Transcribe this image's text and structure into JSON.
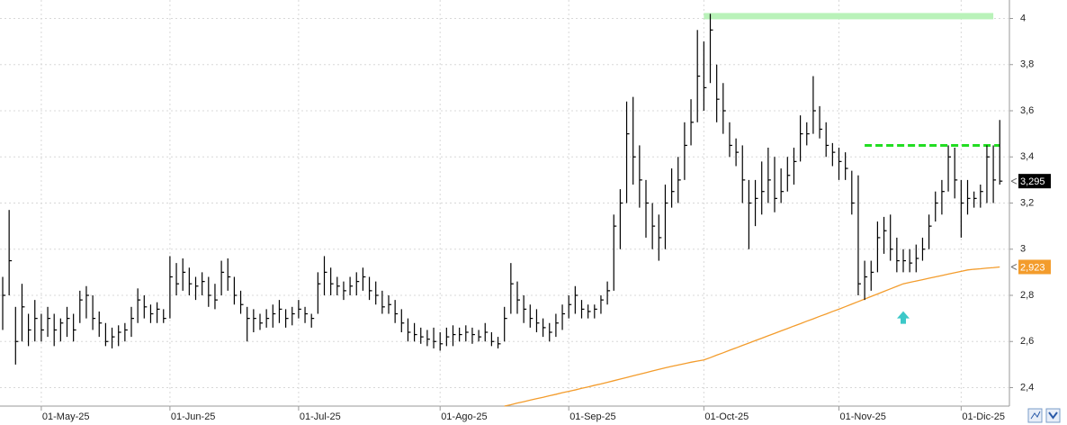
{
  "chart_data": {
    "type": "ohlc",
    "bar_color": "#000000",
    "categories": [
      null,
      null,
      null,
      null,
      null,
      null,
      "01-May-25",
      null,
      null,
      null,
      null,
      null,
      null,
      null,
      null,
      null,
      null,
      null,
      null,
      null,
      null,
      null,
      null,
      null,
      null,
      null,
      "01-Jun-25",
      null,
      null,
      null,
      null,
      null,
      null,
      null,
      null,
      null,
      null,
      null,
      null,
      null,
      null,
      null,
      null,
      null,
      null,
      null,
      "01-Jul-25",
      null,
      null,
      null,
      null,
      null,
      null,
      null,
      null,
      null,
      null,
      null,
      null,
      null,
      null,
      null,
      null,
      null,
      null,
      null,
      null,
      null,
      "01-Ago-25",
      null,
      null,
      null,
      null,
      null,
      null,
      null,
      null,
      null,
      null,
      null,
      null,
      null,
      null,
      null,
      null,
      null,
      null,
      null,
      "01-Sep-25",
      null,
      null,
      null,
      null,
      null,
      null,
      null,
      null,
      null,
      null,
      null,
      null,
      null,
      null,
      null,
      null,
      null,
      null,
      null,
      null,
      "01-Oct-25",
      null,
      null,
      null,
      null,
      null,
      null,
      null,
      null,
      null,
      null,
      null,
      null,
      null,
      null,
      null,
      null,
      null,
      null,
      null,
      null,
      "01-Nov-25",
      null,
      null,
      null,
      null,
      null,
      null,
      null,
      null,
      null,
      null,
      null,
      null,
      null,
      null,
      null,
      null,
      null,
      null,
      "01-Dic-25",
      null,
      null,
      null,
      null,
      null,
      null
    ],
    "high": [
      2.88,
      3.17,
      2.75,
      2.85,
      2.72,
      2.78,
      2.72,
      2.75,
      2.72,
      2.7,
      2.75,
      2.72,
      2.82,
      2.84,
      2.8,
      2.73,
      2.68,
      2.66,
      2.67,
      2.68,
      2.75,
      2.83,
      2.8,
      2.76,
      2.77,
      2.74,
      2.97,
      2.94,
      2.96,
      2.92,
      2.88,
      2.9,
      2.88,
      2.85,
      2.95,
      2.96,
      2.88,
      2.82,
      2.75,
      2.74,
      2.72,
      2.74,
      2.76,
      2.78,
      2.74,
      2.75,
      2.78,
      2.75,
      2.72,
      2.9,
      2.97,
      2.92,
      2.88,
      2.86,
      2.88,
      2.9,
      2.92,
      2.88,
      2.86,
      2.82,
      2.8,
      2.78,
      2.74,
      2.7,
      2.68,
      2.66,
      2.65,
      2.66,
      2.64,
      2.66,
      2.67,
      2.66,
      2.67,
      2.66,
      2.65,
      2.68,
      2.64,
      2.62,
      2.75,
      2.94,
      2.86,
      2.8,
      2.76,
      2.74,
      2.7,
      2.68,
      2.72,
      2.76,
      2.8,
      2.84,
      2.78,
      2.76,
      2.76,
      2.8,
      2.86,
      3.15,
      3.26,
      3.64,
      3.66,
      3.45,
      3.3,
      3.2,
      3.15,
      3.28,
      3.35,
      3.4,
      3.55,
      3.65,
      3.95,
      3.9,
      4.02,
      3.8,
      3.72,
      3.55,
      3.48,
      3.45,
      3.3,
      3.3,
      3.38,
      3.44,
      3.4,
      3.35,
      3.4,
      3.44,
      3.58,
      3.55,
      3.75,
      3.62,
      3.55,
      3.46,
      3.44,
      3.42,
      3.34,
      3.32,
      2.95,
      2.95,
      3.12,
      3.14,
      3.15,
      3.05,
      3.0,
      3.0,
      3.02,
      3.05,
      3.15,
      3.25,
      3.3,
      3.45,
      3.44,
      3.3,
      3.3,
      3.25,
      3.28,
      3.45,
      3.45,
      3.56
    ],
    "low": [
      2.65,
      2.8,
      2.5,
      2.6,
      2.58,
      2.6,
      2.6,
      2.62,
      2.58,
      2.6,
      2.62,
      2.6,
      2.68,
      2.7,
      2.65,
      2.62,
      2.58,
      2.57,
      2.58,
      2.6,
      2.62,
      2.68,
      2.7,
      2.68,
      2.68,
      2.68,
      2.7,
      2.8,
      2.82,
      2.8,
      2.78,
      2.8,
      2.75,
      2.74,
      2.8,
      2.82,
      2.76,
      2.72,
      2.6,
      2.64,
      2.65,
      2.66,
      2.66,
      2.68,
      2.66,
      2.67,
      2.7,
      2.68,
      2.66,
      2.72,
      2.8,
      2.8,
      2.8,
      2.78,
      2.8,
      2.8,
      2.82,
      2.78,
      2.76,
      2.72,
      2.72,
      2.68,
      2.64,
      2.6,
      2.6,
      2.59,
      2.58,
      2.57,
      2.56,
      2.58,
      2.58,
      2.6,
      2.6,
      2.59,
      2.6,
      2.6,
      2.58,
      2.57,
      2.6,
      2.72,
      2.72,
      2.68,
      2.66,
      2.64,
      2.62,
      2.6,
      2.62,
      2.65,
      2.7,
      2.72,
      2.7,
      2.7,
      2.7,
      2.72,
      2.76,
      2.82,
      3.0,
      3.2,
      3.28,
      3.18,
      3.05,
      3.0,
      2.95,
      3.0,
      3.18,
      3.2,
      3.3,
      3.45,
      3.55,
      3.6,
      3.72,
      3.55,
      3.5,
      3.4,
      3.36,
      3.2,
      3.0,
      3.1,
      3.15,
      3.2,
      3.16,
      3.2,
      3.25,
      3.28,
      3.38,
      3.45,
      3.5,
      3.48,
      3.4,
      3.36,
      3.3,
      3.3,
      3.15,
      2.8,
      2.78,
      2.82,
      2.9,
      2.98,
      2.95,
      2.9,
      2.9,
      2.9,
      2.9,
      2.95,
      3.0,
      3.12,
      3.15,
      3.25,
      3.22,
      3.05,
      3.15,
      3.18,
      3.18,
      3.2,
      3.2,
      3.28
    ],
    "close": [
      2.8,
      2.95,
      2.6,
      2.75,
      2.65,
      2.7,
      2.65,
      2.7,
      2.65,
      2.68,
      2.7,
      2.65,
      2.78,
      2.8,
      2.7,
      2.68,
      2.6,
      2.62,
      2.64,
      2.65,
      2.7,
      2.78,
      2.75,
      2.72,
      2.74,
      2.7,
      2.88,
      2.85,
      2.9,
      2.85,
      2.84,
      2.86,
      2.8,
      2.78,
      2.9,
      2.88,
      2.8,
      2.76,
      2.7,
      2.7,
      2.68,
      2.7,
      2.72,
      2.74,
      2.7,
      2.72,
      2.74,
      2.72,
      2.7,
      2.85,
      2.9,
      2.85,
      2.84,
      2.82,
      2.84,
      2.86,
      2.88,
      2.82,
      2.8,
      2.75,
      2.76,
      2.72,
      2.68,
      2.64,
      2.63,
      2.62,
      2.61,
      2.6,
      2.59,
      2.62,
      2.63,
      2.63,
      2.64,
      2.63,
      2.62,
      2.64,
      2.6,
      2.59,
      2.7,
      2.85,
      2.78,
      2.74,
      2.7,
      2.68,
      2.66,
      2.64,
      2.68,
      2.72,
      2.76,
      2.8,
      2.74,
      2.73,
      2.74,
      2.78,
      2.82,
      3.1,
      3.2,
      3.5,
      3.4,
      3.3,
      3.2,
      3.1,
      3.05,
      3.2,
      3.25,
      3.3,
      3.45,
      3.55,
      3.75,
      3.7,
      3.95,
      3.65,
      3.6,
      3.45,
      3.42,
      3.3,
      3.2,
      3.22,
      3.25,
      3.3,
      3.22,
      3.25,
      3.32,
      3.38,
      3.5,
      3.5,
      3.6,
      3.52,
      3.45,
      3.42,
      3.38,
      3.35,
      3.2,
      2.85,
      2.88,
      2.9,
      3.05,
      3.08,
      3.0,
      2.95,
      2.95,
      2.94,
      2.96,
      3.0,
      3.1,
      3.2,
      3.25,
      3.4,
      3.3,
      3.2,
      3.22,
      3.22,
      3.25,
      3.4,
      3.3,
      3.295
    ],
    "last_close_label": {
      "value": 3.295,
      "label": "3,295",
      "color": "#000000"
    },
    "moving_average": {
      "color": "#f39c2c",
      "values": [
        null,
        null,
        null,
        null,
        null,
        null,
        null,
        null,
        null,
        null,
        null,
        null,
        null,
        null,
        null,
        null,
        null,
        null,
        null,
        null,
        null,
        null,
        null,
        null,
        null,
        null,
        null,
        null,
        null,
        null,
        null,
        null,
        null,
        null,
        null,
        null,
        null,
        null,
        null,
        null,
        null,
        null,
        null,
        null,
        null,
        null,
        null,
        null,
        null,
        null,
        null,
        null,
        null,
        null,
        null,
        null,
        null,
        null,
        null,
        null,
        null,
        null,
        null,
        null,
        null,
        null,
        null,
        null,
        null,
        null,
        null,
        null,
        null,
        null,
        null,
        null,
        null,
        null,
        2.32,
        2.326,
        2.333,
        2.339,
        2.346,
        2.352,
        2.358,
        2.365,
        2.371,
        2.378,
        2.384,
        2.39,
        2.397,
        2.403,
        2.41,
        2.416,
        2.423,
        2.43,
        2.437,
        2.444,
        2.451,
        2.458,
        2.465,
        2.472,
        2.479,
        2.486,
        2.492,
        2.498,
        2.504,
        2.51,
        2.515,
        2.52,
        2.53,
        2.541,
        2.551,
        2.562,
        2.572,
        2.583,
        2.593,
        2.604,
        2.614,
        2.625,
        2.635,
        2.646,
        2.656,
        2.667,
        2.677,
        2.688,
        2.698,
        2.709,
        2.719,
        2.73,
        2.74,
        2.751,
        2.762,
        2.773,
        2.784,
        2.795,
        2.806,
        2.817,
        2.828,
        2.839,
        2.85,
        2.856,
        2.862,
        2.868,
        2.874,
        2.88,
        2.886,
        2.892,
        2.898,
        2.904,
        2.91,
        2.913,
        2.915,
        2.918,
        2.92,
        2.923
      ],
      "last_label": {
        "value": 2.923,
        "label": "2,923"
      }
    },
    "levels": [
      {
        "value": 4.01,
        "start": 109,
        "end": 154,
        "color": "#b9f2b9",
        "style": "band"
      },
      {
        "value": 3.45,
        "start": 134,
        "end": 155,
        "color": "#22dd22",
        "style": "dashed"
      }
    ],
    "arrow": {
      "value": 2.7,
      "at": 140,
      "color": "#3cc8c8"
    },
    "ylim": [
      2.32,
      4.08
    ],
    "yticks": [
      {
        "value": 2.4,
        "label": "2,4"
      },
      {
        "value": 2.6,
        "label": "2,6"
      },
      {
        "value": 2.8,
        "label": "2,8"
      },
      3,
      {
        "value": 3.2,
        "label": "3,2"
      },
      {
        "value": 3.4,
        "label": "3,4"
      },
      {
        "value": 3.6,
        "label": "3,6"
      },
      {
        "value": 3.8,
        "label": "3,8"
      },
      4
    ],
    "grid": true
  }
}
